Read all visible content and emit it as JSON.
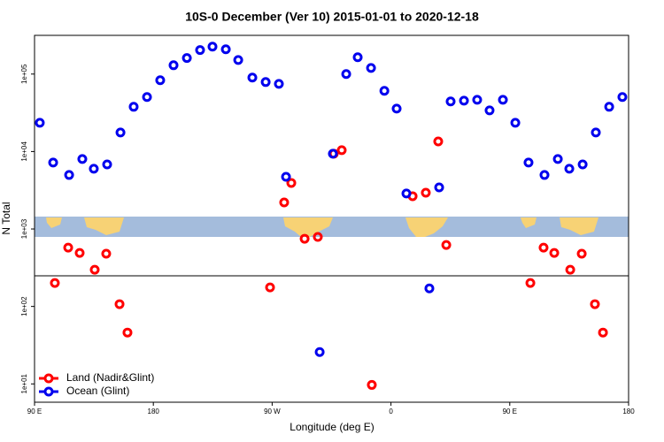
{
  "chart_data": {
    "type": "scatter",
    "title": "10S-0 December (Ver 10)   2015-01-01 to 2020-12-18",
    "x_label": "Longitude (deg E)",
    "y_label": "N Total",
    "log_y": true,
    "legend": "bottom-left",
    "xlim": [
      90,
      540
    ],
    "ylim": [
      5.8,
      316000
    ],
    "xticks": [
      {
        "value": 90,
        "label": "90 E"
      },
      {
        "value": 180,
        "label": "180"
      },
      {
        "value": 270,
        "label": "90 W"
      },
      {
        "value": 360,
        "label": "0"
      },
      {
        "value": 450,
        "label": "90 E"
      },
      {
        "value": 540,
        "label": "180"
      }
    ],
    "yticks": [
      {
        "value": 10,
        "label": "1e+01"
      },
      {
        "value": 100,
        "label": "1e+02"
      },
      {
        "value": 1000,
        "label": "1e+03"
      },
      {
        "value": 10000,
        "label": "1e+04"
      },
      {
        "value": 100000,
        "label": "1e+05"
      }
    ],
    "series": [
      {
        "name": "Land (Nadir&Glint)",
        "color": "#ff0000",
        "x": [
          105.4,
          115.5,
          124.2,
          135.6,
          144.3,
          154.4,
          160.4,
          268.4,
          279.1,
          284.5,
          294.6,
          304.6,
          316.7,
          322.7,
          345.5,
          376.4,
          386.4,
          395.8,
          401.9,
          465.6,
          475.6,
          483.7,
          495.8,
          504.5,
          514.5,
          520.6
        ],
        "values": [
          201,
          575,
          491,
          298,
          479,
          107,
          46,
          176,
          2200,
          3930,
          748,
          789,
          9360,
          10400,
          9.7,
          2650,
          2940,
          13500,
          622,
          201,
          575,
          491,
          298,
          479,
          107,
          46
        ]
      },
      {
        "name": "Ocean (Glint)",
        "color": "#0000ee",
        "x": [
          94.0,
          104.1,
          116.2,
          126.2,
          134.9,
          145.0,
          155.1,
          165.1,
          175.2,
          185.2,
          195.3,
          205.4,
          215.4,
          224.8,
          234.9,
          244.3,
          255.0,
          265.1,
          275.1,
          280.5,
          306.0,
          316.0,
          326.1,
          334.8,
          344.9,
          355.0,
          364.3,
          371.7,
          389.1,
          396.5,
          405.2,
          415.3,
          425.3,
          434.7,
          444.8,
          454.2,
          464.2,
          476.3,
          486.4,
          495.1,
          505.2,
          515.2,
          525.3,
          535.3
        ],
        "values": [
          23500,
          7200,
          4980,
          8000,
          5990,
          6820,
          17600,
          37800,
          50500,
          83200,
          130000,
          161000,
          204000,
          226000,
          209000,
          152000,
          90000,
          78900,
          74800,
          4720,
          25.8,
          9360,
          100000,
          165000,
          120000,
          60700,
          35800,
          2870,
          171,
          3440,
          44300,
          45400,
          46600,
          34000,
          46600,
          23500,
          7200,
          4980,
          8000,
          5990,
          6820,
          17600,
          37800,
          50500
        ]
      }
    ]
  }
}
